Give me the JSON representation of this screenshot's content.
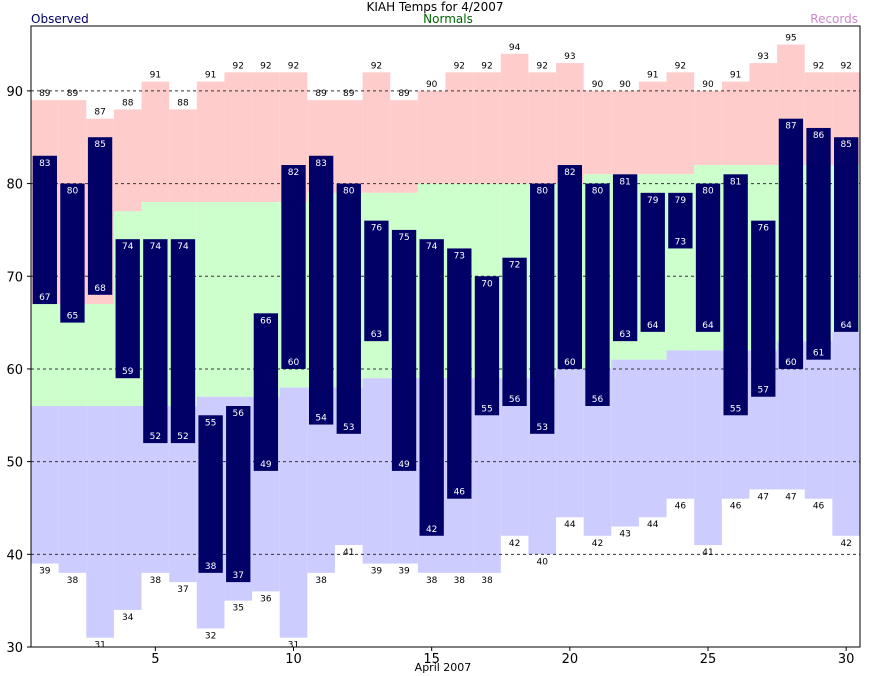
{
  "title": "KIAH Temps for 4/2007",
  "legend": {
    "observed": "Observed",
    "normals": "Normals",
    "records": "Records"
  },
  "colors": {
    "observed_bar": "#000066",
    "normal_band": "#ccffcc",
    "record_high_band": "#ffcccc",
    "record_low_band": "#ccccff",
    "observed_text": "#000066",
    "normals_text": "#006600",
    "records_text": "#cc88cc"
  },
  "chart_data": {
    "type": "bar",
    "xlabel": "April 2007",
    "ylabel": "",
    "xlim": [
      0.5,
      30.5
    ],
    "ylim": [
      30,
      97
    ],
    "x_ticks": [
      5,
      10,
      15,
      20,
      25,
      30
    ],
    "y_ticks": [
      30,
      40,
      50,
      60,
      70,
      80,
      90
    ],
    "gridlines_y": [
      40,
      50,
      60,
      70,
      80,
      90
    ],
    "grid": true,
    "days": [
      1,
      2,
      3,
      4,
      5,
      6,
      7,
      8,
      9,
      10,
      11,
      12,
      13,
      14,
      15,
      16,
      17,
      18,
      19,
      20,
      21,
      22,
      23,
      24,
      25,
      26,
      27,
      28,
      29,
      30
    ],
    "series": [
      {
        "name": "Observed",
        "key": "obs_high",
        "values": [
          83,
          80,
          85,
          74,
          74,
          74,
          55,
          56,
          66,
          82,
          83,
          80,
          76,
          75,
          74,
          73,
          70,
          72,
          80,
          82,
          80,
          81,
          79,
          79,
          80,
          81,
          76,
          87,
          86,
          85
        ]
      },
      {
        "name": "Observed",
        "key": "obs_low",
        "values": [
          67,
          65,
          68,
          59,
          52,
          52,
          38,
          37,
          49,
          60,
          54,
          53,
          63,
          49,
          42,
          46,
          55,
          56,
          53,
          60,
          56,
          63,
          64,
          73,
          64,
          55,
          57,
          60,
          61,
          64
        ]
      },
      {
        "name": "Records",
        "key": "record_high",
        "values": [
          89,
          89,
          87,
          88,
          91,
          88,
          91,
          92,
          92,
          92,
          89,
          89,
          92,
          89,
          90,
          92,
          92,
          94,
          92,
          93,
          90,
          90,
          91,
          92,
          90,
          91,
          93,
          95,
          92,
          92
        ]
      },
      {
        "name": "Records",
        "key": "record_low",
        "values": [
          39,
          38,
          31,
          34,
          38,
          37,
          32,
          35,
          36,
          31,
          38,
          41,
          39,
          39,
          38,
          38,
          38,
          42,
          40,
          44,
          42,
          43,
          44,
          46,
          41,
          46,
          47,
          47,
          46,
          42
        ]
      },
      {
        "name": "Normals",
        "key": "normal_high",
        "values": [
          67,
          67,
          67,
          77,
          78,
          78,
          78,
          78,
          78,
          78,
          79,
          79,
          79,
          79,
          80,
          80,
          80,
          80,
          80,
          80,
          81,
          81,
          81,
          81,
          82,
          82,
          82,
          82,
          82,
          82
        ]
      },
      {
        "name": "Normals",
        "key": "normal_low",
        "values": [
          56,
          56,
          56,
          56,
          56,
          56,
          57,
          57,
          57,
          58,
          58,
          58,
          59,
          59,
          59,
          59,
          59,
          59,
          59,
          60,
          60,
          61,
          61,
          62,
          62,
          62,
          62,
          63,
          63,
          64
        ]
      }
    ]
  }
}
